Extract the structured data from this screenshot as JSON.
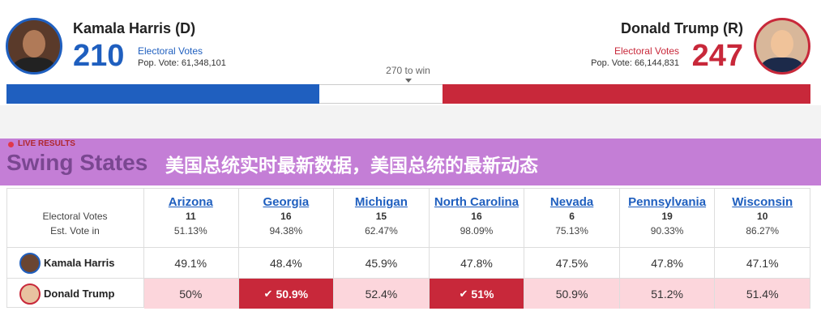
{
  "candidates": [
    {
      "name": "Kamala Harris (D)",
      "electoral_votes": 210,
      "ev_label": "Electoral Votes",
      "pop_vote": "Pop. Vote: 61,348,101",
      "color": "#1f5fbf"
    },
    {
      "name": "Donald Trump (R)",
      "electoral_votes": 247,
      "ev_label": "Electoral Votes",
      "pop_vote": "Pop. Vote: 66,144,831",
      "color": "#c8283a"
    }
  ],
  "to_win": {
    "value": 270,
    "label": "270 to win"
  },
  "banner": {
    "tag": "LIVE RESULTS",
    "heading": "Swing States",
    "title": "美国总统实时最新数据，美国总统的最新动态"
  },
  "table": {
    "header_labels": [
      "Electoral Votes",
      "Est. Vote in"
    ],
    "states": [
      {
        "name": "Arizona",
        "ev": 11,
        "vote_in": "51.13%"
      },
      {
        "name": "Georgia",
        "ev": 16,
        "vote_in": "94.38%"
      },
      {
        "name": "Michigan",
        "ev": 15,
        "vote_in": "62.47%"
      },
      {
        "name": "North Carolina",
        "ev": 16,
        "vote_in": "98.09%"
      },
      {
        "name": "Nevada",
        "ev": 6,
        "vote_in": "75.13%"
      },
      {
        "name": "Pennsylvania",
        "ev": 19,
        "vote_in": "90.33%"
      },
      {
        "name": "Wisconsin",
        "ev": 10,
        "vote_in": "86.27%"
      }
    ],
    "rows": [
      {
        "name": "Kamala Harris",
        "values": [
          "49.1%",
          "48.4%",
          "45.9%",
          "47.8%",
          "47.5%",
          "47.8%",
          "47.1%"
        ],
        "winner": [
          false,
          false,
          false,
          false,
          false,
          false,
          false
        ]
      },
      {
        "name": "Donald Trump",
        "values": [
          "50%",
          "50.9%",
          "52.4%",
          "51%",
          "50.9%",
          "51.2%",
          "51.4%"
        ],
        "winner": [
          false,
          true,
          false,
          true,
          false,
          false,
          false
        ]
      }
    ]
  }
}
